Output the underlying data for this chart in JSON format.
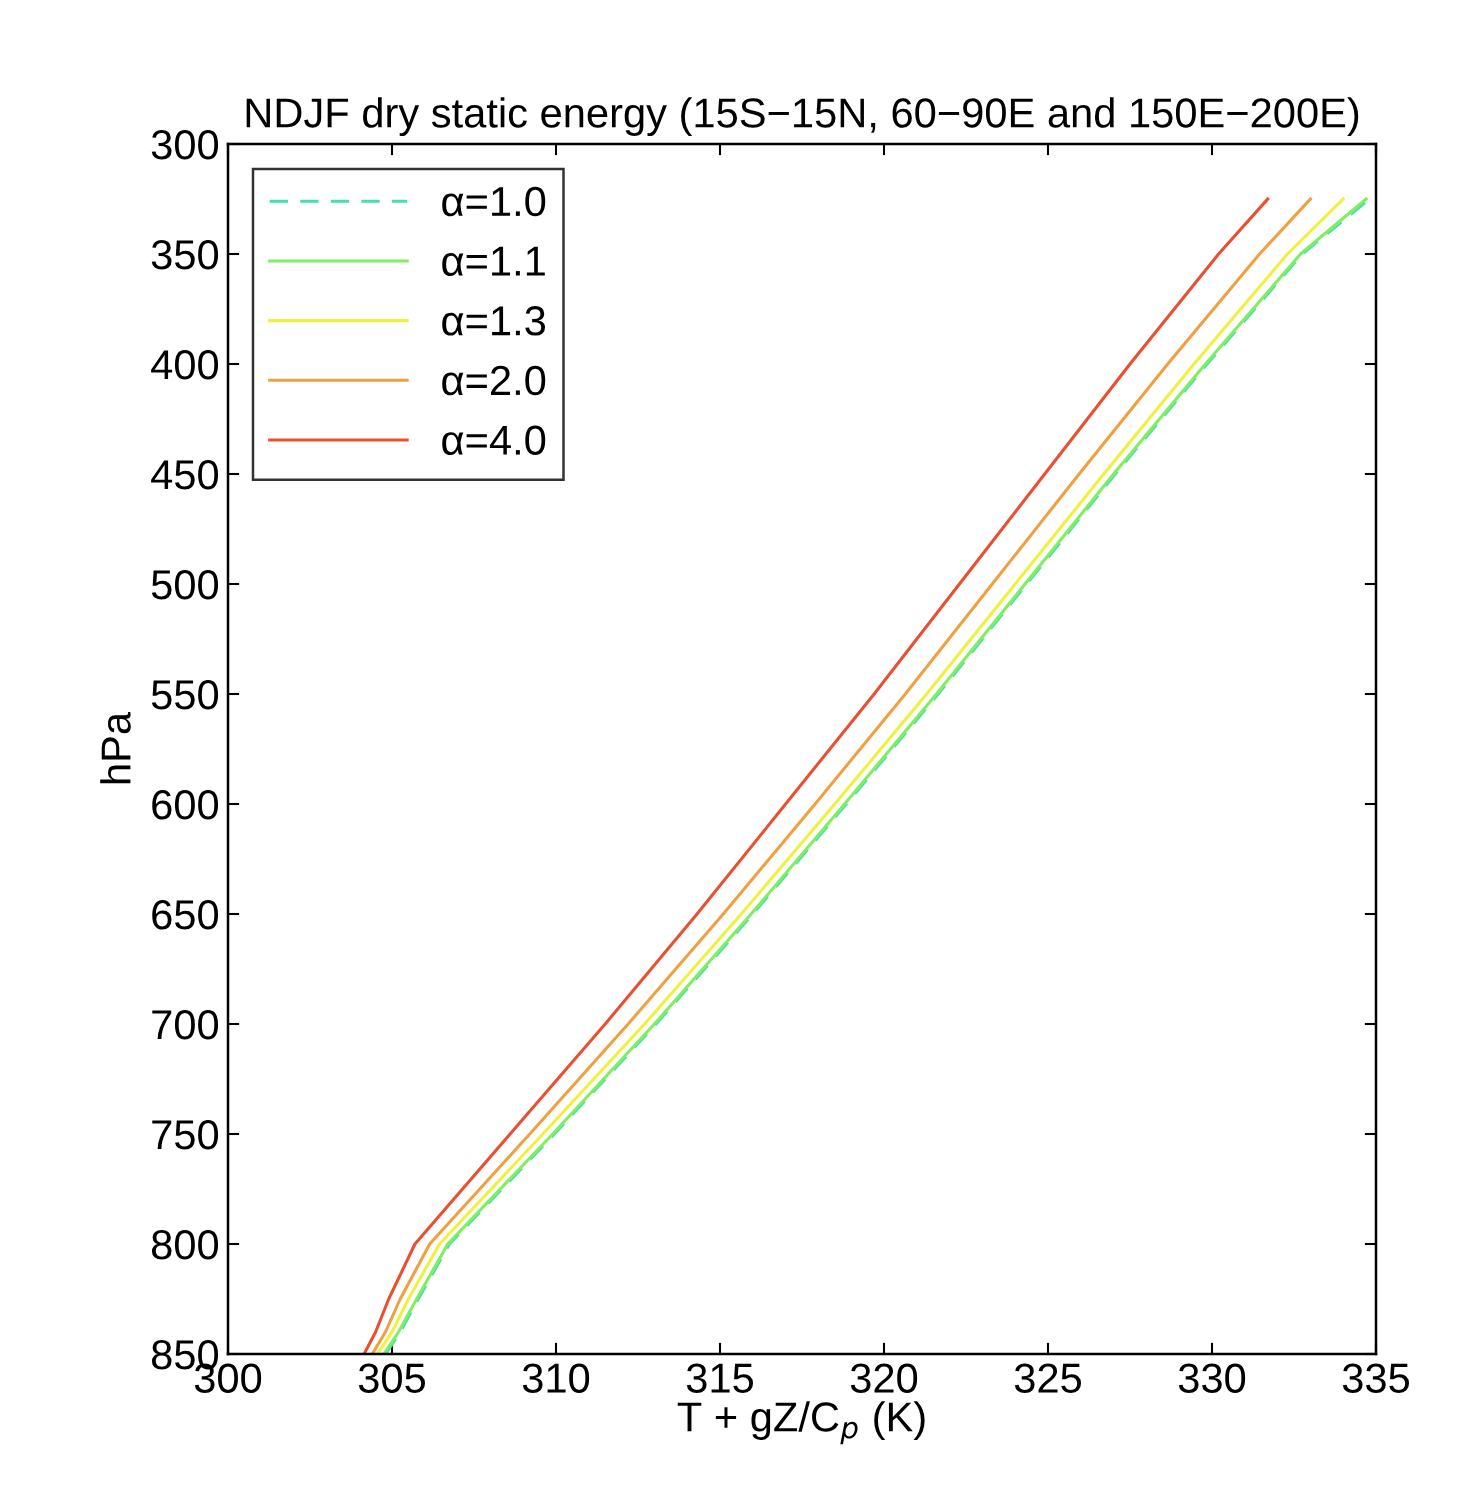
{
  "chart_data": {
    "type": "line",
    "title": "NDJF dry static energy (15S−15N, 60−90E and 150E−200E)",
    "xlabel": "T + gZ/C$_{p}$ (K)",
    "ylabel": "hPa",
    "series": [
      {
        "name": "α=1.0",
        "color": "#40e0b0",
        "line_style": "dashed",
        "x": [
          304.8,
          305.25,
          305.8,
          306.75,
          309.95,
          313.05,
          316.0,
          318.85,
          321.65,
          324.35,
          327.05,
          329.85,
          332.75,
          334.8
        ],
        "values": [
          850,
          840,
          825,
          800,
          750,
          700,
          650,
          600,
          550,
          500,
          450,
          400,
          350,
          325
        ]
      },
      {
        "name": "α=1.1",
        "color": "#80ee60",
        "line_style": "solid",
        "x": [
          304.75,
          305.2,
          305.75,
          306.7,
          309.9,
          313.0,
          315.95,
          318.8,
          321.6,
          324.3,
          327.0,
          329.8,
          332.7,
          334.7
        ],
        "values": [
          850,
          840,
          825,
          800,
          750,
          700,
          650,
          600,
          550,
          500,
          450,
          400,
          350,
          325
        ]
      },
      {
        "name": "α=1.3",
        "color": "#f0f040",
        "line_style": "solid",
        "x": [
          304.55,
          305.0,
          305.5,
          306.45,
          309.6,
          312.7,
          315.65,
          318.5,
          321.3,
          324.0,
          326.7,
          329.45,
          332.3,
          334.0
        ],
        "values": [
          850,
          840,
          825,
          800,
          750,
          700,
          650,
          600,
          550,
          500,
          450,
          400,
          350,
          325
        ]
      },
      {
        "name": "α=2.0",
        "color": "#f0a040",
        "line_style": "solid",
        "x": [
          304.4,
          304.8,
          305.25,
          306.15,
          309.2,
          312.2,
          315.1,
          317.9,
          320.65,
          323.3,
          325.95,
          328.65,
          331.45,
          333.0
        ],
        "values": [
          850,
          840,
          825,
          800,
          750,
          700,
          650,
          600,
          550,
          500,
          450,
          400,
          350,
          325
        ]
      },
      {
        "name": "α=4.0",
        "color": "#e85030",
        "line_style": "solid",
        "x": [
          304.15,
          304.5,
          304.9,
          305.7,
          308.6,
          311.5,
          314.3,
          317.0,
          319.7,
          322.3,
          324.9,
          327.5,
          330.2,
          331.7
        ],
        "values": [
          850,
          840,
          825,
          800,
          750,
          700,
          650,
          600,
          550,
          500,
          450,
          400,
          350,
          325
        ]
      }
    ],
    "xlim": [
      300,
      335
    ],
    "xticks": [
      300,
      305,
      310,
      315,
      320,
      325,
      330,
      335
    ],
    "ylim": [
      850,
      300
    ],
    "yticks": [
      300,
      350,
      400,
      450,
      500,
      550,
      600,
      650,
      700,
      750,
      800,
      850
    ],
    "grid": false,
    "legend": "top left",
    "marker": "none"
  }
}
